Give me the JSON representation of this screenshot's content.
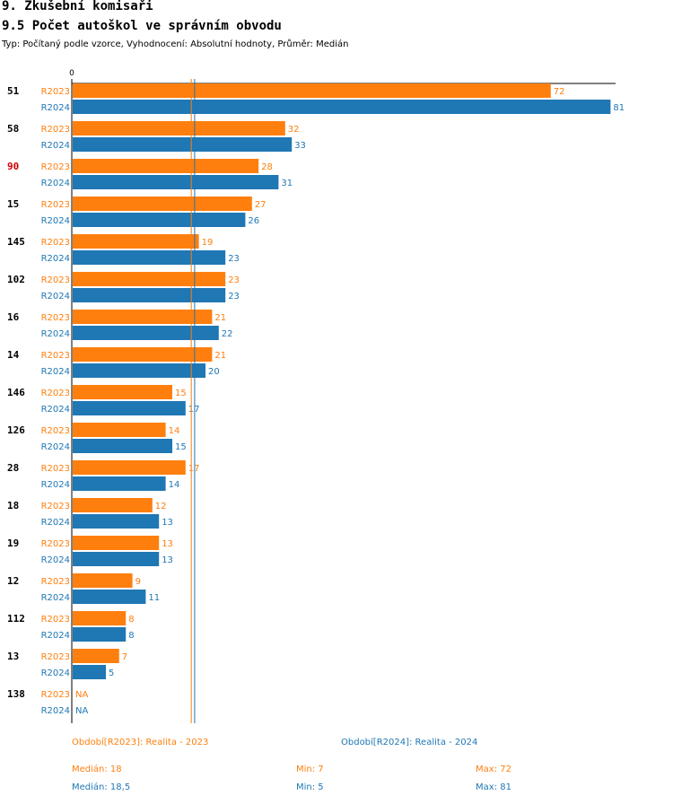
{
  "header": {
    "title": "9. Zkušební komisaři",
    "subtitle": "9.5 Počet autoškol ve správním obvodu",
    "description": "Typ: Počítaný podle vzorce, Vyhodnocení: Absolutní hodnoty, Průměr: Medián"
  },
  "colors": {
    "r2023": "#ff7f0e",
    "r2024": "#1f77b4",
    "highlight": "#cc0000"
  },
  "chart_data": {
    "type": "bar",
    "orientation": "horizontal",
    "title": "9.5 Počet autoškol ve správním obvodu",
    "xlim": [
      0,
      84
    ],
    "x_tick_label": "0",
    "categories": [
      "51",
      "58",
      "90",
      "15",
      "145",
      "102",
      "16",
      "14",
      "146",
      "126",
      "28",
      "18",
      "19",
      "12",
      "112",
      "13",
      "138"
    ],
    "highlighted_category": "90",
    "series": [
      {
        "name": "R2023",
        "values": [
          72,
          32,
          28,
          27,
          19,
          23,
          21,
          21,
          15,
          14,
          17,
          12,
          13,
          9,
          8,
          7,
          null
        ]
      },
      {
        "name": "R2024",
        "values": [
          81,
          33,
          31,
          26,
          23,
          23,
          22,
          20,
          17,
          15,
          14,
          13,
          13,
          11,
          8,
          5,
          null
        ]
      }
    ],
    "missing_label": "NA",
    "median_lines": {
      "R2023": 18,
      "R2024": 18.5
    }
  },
  "legend": {
    "r2023": "Období[R2023]: Realita - 2023",
    "r2024": "Období[R2024]: Realita - 2024"
  },
  "stats": {
    "r2023": {
      "median": "Medián: 18",
      "min": "Min: 7",
      "max": "Max: 72"
    },
    "r2024": {
      "median": "Medián: 18,5",
      "min": "Min: 5",
      "max": "Max: 81"
    }
  }
}
